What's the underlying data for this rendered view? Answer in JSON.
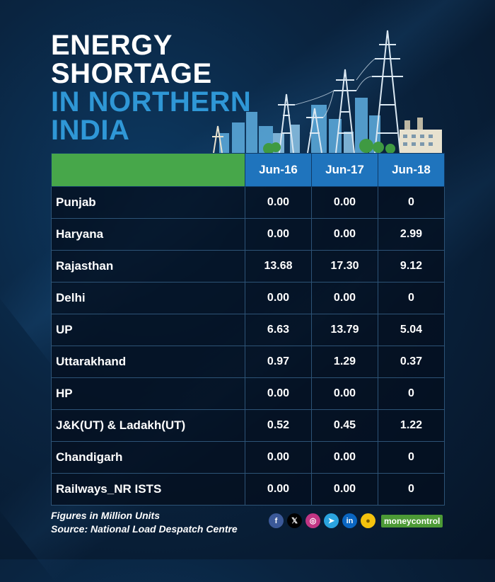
{
  "title": {
    "line1": "ENERGY",
    "line2": "SHORTAGE",
    "line3": "IN NORTHERN",
    "line4": "INDIA"
  },
  "table": {
    "columns": [
      "Jun-16",
      "Jun-17",
      "Jun-18"
    ],
    "rows": [
      {
        "state": "Punjab",
        "values": [
          "0.00",
          "0.00",
          "0"
        ]
      },
      {
        "state": "Haryana",
        "values": [
          "0.00",
          "0.00",
          "2.99"
        ]
      },
      {
        "state": "Rajasthan",
        "values": [
          "13.68",
          "17.30",
          "9.12"
        ]
      },
      {
        "state": "Delhi",
        "values": [
          "0.00",
          "0.00",
          "0"
        ]
      },
      {
        "state": "UP",
        "values": [
          "6.63",
          "13.79",
          "5.04"
        ]
      },
      {
        "state": "Uttarakhand",
        "values": [
          "0.97",
          "1.29",
          "0.37"
        ]
      },
      {
        "state": "HP",
        "values": [
          "0.00",
          "0.00",
          "0"
        ]
      },
      {
        "state": "J&K(UT) & Ladakh(UT)",
        "values": [
          "0.52",
          "0.45",
          "1.22"
        ]
      },
      {
        "state": "Chandigarh",
        "values": [
          "0.00",
          "0.00",
          "0"
        ]
      },
      {
        "state": "Railways_NR ISTS",
        "values": [
          "0.00",
          "0.00",
          "0"
        ]
      }
    ]
  },
  "chart_data": {
    "type": "table",
    "title": "ENERGY SHORTAGE IN NORTHERN INDIA",
    "columns": [
      "Jun-16",
      "Jun-17",
      "Jun-18"
    ],
    "rows": [
      "Punjab",
      "Haryana",
      "Rajasthan",
      "Delhi",
      "UP",
      "Uttarakhand",
      "HP",
      "J&K(UT) & Ladakh(UT)",
      "Chandigarh",
      "Railways_NR ISTS"
    ],
    "values": [
      [
        0.0,
        0.0,
        0
      ],
      [
        0.0,
        0.0,
        2.99
      ],
      [
        13.68,
        17.3,
        9.12
      ],
      [
        0.0,
        0.0,
        0
      ],
      [
        6.63,
        13.79,
        5.04
      ],
      [
        0.97,
        1.29,
        0.37
      ],
      [
        0.0,
        0.0,
        0
      ],
      [
        0.52,
        0.45,
        1.22
      ],
      [
        0.0,
        0.0,
        0
      ],
      [
        0.0,
        0.0,
        0
      ]
    ],
    "unit": "Million Units"
  },
  "footer": {
    "note": "Figures in Million Units",
    "source": "Source: National Load Despatch Centre"
  },
  "social": {
    "icons": [
      "facebook-icon",
      "x-icon",
      "instagram-icon",
      "telegram-icon",
      "linkedin-icon",
      "koo-icon"
    ],
    "labels": [
      "f",
      "𝕏",
      "◎",
      "➤",
      "in",
      "●"
    ],
    "colors": [
      "#3b5998",
      "#000000",
      "#c13584",
      "#2aa3df",
      "#0a66c2",
      "#f4c20d"
    ]
  },
  "brand": {
    "part1": "money",
    "part2": "control",
    "color": "#4c9a36"
  },
  "colors": {
    "header_green": "#47a74a",
    "header_blue": "#1f74bd",
    "title_blue": "#2f97d6"
  }
}
